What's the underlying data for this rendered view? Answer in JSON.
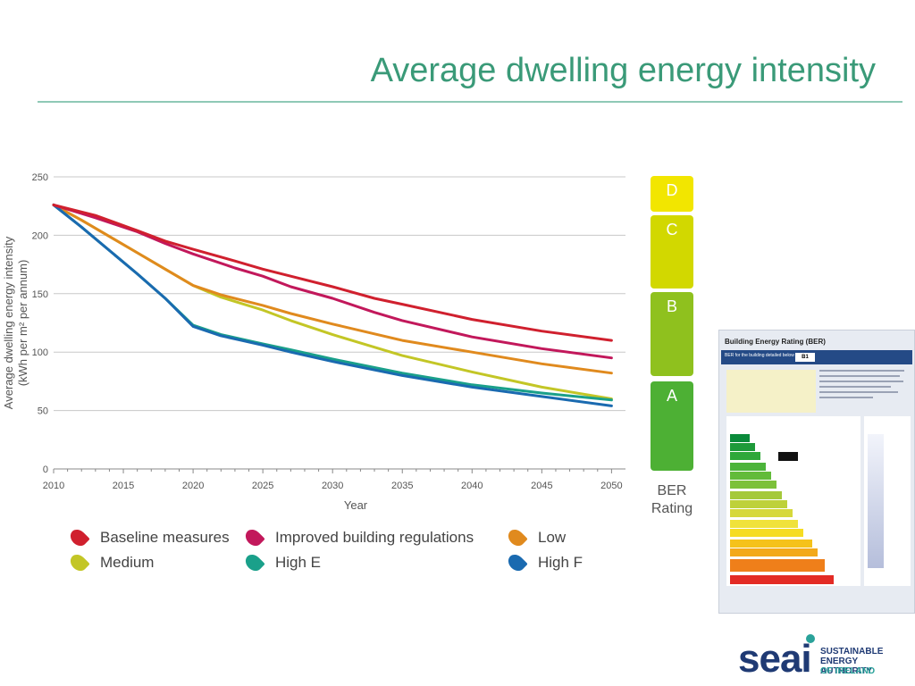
{
  "slide": {
    "title": "Average dwelling energy intensity"
  },
  "chart_data": {
    "type": "line",
    "title": "",
    "xlabel": "Year",
    "ylabel_line1": "Average dwelling energy intensity",
    "ylabel_line2": "(kWh per m² per annum)",
    "xlim": [
      2010,
      2051
    ],
    "ylim": [
      0,
      250
    ],
    "xticks": [
      2010,
      2015,
      2020,
      2025,
      2030,
      2035,
      2040,
      2045,
      2050
    ],
    "yticks": [
      0,
      50,
      100,
      150,
      200,
      250
    ],
    "grid": "horizontal",
    "legend_position": "bottom",
    "series": [
      {
        "name": "Baseline measures",
        "color": "#d0202e",
        "x": [
          2010,
          2013,
          2016,
          2018,
          2020,
          2023,
          2025,
          2027,
          2030,
          2033,
          2035,
          2040,
          2045,
          2050
        ],
        "y": [
          226,
          217,
          204,
          195,
          188,
          178,
          171,
          165,
          156,
          146,
          141,
          128,
          118,
          110
        ]
      },
      {
        "name": "Improved building regulations",
        "color": "#c2185b",
        "x": [
          2010,
          2013,
          2016,
          2018,
          2020,
          2023,
          2025,
          2027,
          2030,
          2033,
          2035,
          2040,
          2045,
          2050
        ],
        "y": [
          226,
          215,
          203,
          193,
          184,
          172,
          165,
          156,
          146,
          134,
          127,
          113,
          103,
          95
        ]
      },
      {
        "name": "Low",
        "color": "#e08a1e",
        "x": [
          2010,
          2012,
          2014,
          2016,
          2018,
          2020,
          2022,
          2025,
          2027,
          2030,
          2035,
          2040,
          2045,
          2050
        ],
        "y": [
          226,
          213,
          199,
          185,
          171,
          157,
          149,
          140,
          133,
          124,
          110,
          100,
          90,
          82
        ]
      },
      {
        "name": "Medium",
        "color": "#c3c626",
        "x": [
          2010,
          2012,
          2014,
          2016,
          2018,
          2020,
          2022,
          2025,
          2027,
          2030,
          2035,
          2040,
          2045,
          2050
        ],
        "y": [
          226,
          213,
          199,
          185,
          171,
          157,
          147,
          136,
          127,
          115,
          97,
          83,
          70,
          60
        ]
      },
      {
        "name": "High E",
        "color": "#1aa08a",
        "x": [
          2010,
          2012,
          2014,
          2016,
          2018,
          2020,
          2022,
          2025,
          2027,
          2030,
          2035,
          2040,
          2045,
          2050
        ],
        "y": [
          226,
          207,
          187,
          167,
          146,
          123,
          115,
          107,
          102,
          94,
          82,
          72,
          65,
          59
        ]
      },
      {
        "name": "High F",
        "color": "#1a6ab0",
        "x": [
          2010,
          2012,
          2014,
          2016,
          2018,
          2020,
          2022,
          2025,
          2027,
          2030,
          2035,
          2040,
          2045,
          2050
        ],
        "y": [
          226,
          207,
          187,
          167,
          146,
          122,
          114,
          106,
          100,
          92,
          80,
          70,
          62,
          54
        ]
      }
    ]
  },
  "ber_scale": {
    "bands": [
      {
        "label": "D",
        "color": "#f2e600"
      },
      {
        "label": "C",
        "color": "#d2d800"
      },
      {
        "label": "B",
        "color": "#8fc11e"
      },
      {
        "label": "A",
        "color": "#4db034"
      }
    ],
    "caption_line1": "BER",
    "caption_line2": "Rating"
  },
  "certificate": {
    "title": "Building Energy Rating (BER)",
    "bar_text": "BER for the building detailed below is:",
    "rating": "B1"
  },
  "logo": {
    "word": "seai",
    "line1": "SUSTAINABLE",
    "line2": "ENERGY AUTHORITY",
    "line3": "OF IRELAND"
  }
}
